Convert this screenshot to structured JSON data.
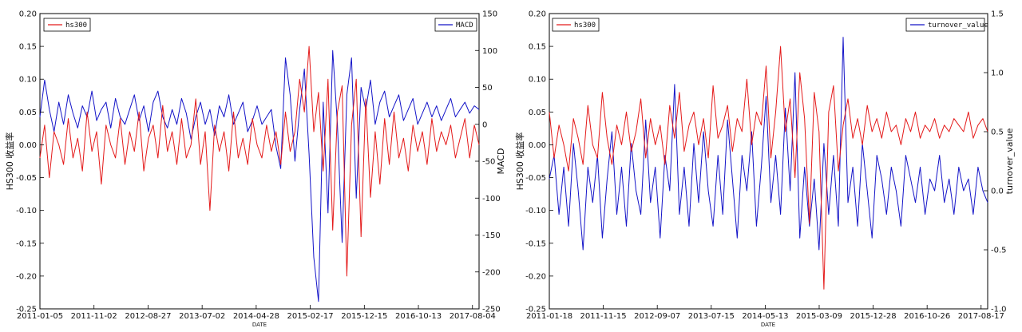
{
  "chart_data": [
    {
      "type": "line",
      "xlabel": "DATE",
      "ylabel_left": "HS300 收益率",
      "ylabel_right": "MACD",
      "x_ticks": [
        "2011-01-05",
        "2011-11-02",
        "2012-08-27",
        "2013-07-02",
        "2014-04-28",
        "2015-02-17",
        "2015-12-15",
        "2016-10-13",
        "2017-08-04"
      ],
      "ylim_left": [
        -0.25,
        0.2
      ],
      "yticks_left": [
        -0.25,
        -0.2,
        -0.15,
        -0.1,
        -0.05,
        0.0,
        0.05,
        0.1,
        0.15,
        0.2
      ],
      "ylim_right": [
        -250,
        150
      ],
      "yticks_right": [
        -250,
        -200,
        -150,
        -100,
        -50,
        0,
        50,
        100,
        150
      ],
      "legend_left": "hs300",
      "legend_right": "MACD",
      "series": [
        {
          "name": "hs300",
          "axis": "left",
          "color": "#e41a1a",
          "values": [
            -0.02,
            0.03,
            -0.05,
            0.02,
            0.0,
            -0.03,
            0.04,
            -0.02,
            0.01,
            -0.04,
            0.05,
            -0.01,
            0.02,
            -0.06,
            0.03,
            0.0,
            -0.02,
            0.04,
            -0.03,
            0.02,
            -0.01,
            0.05,
            -0.04,
            0.01,
            0.03,
            -0.02,
            0.06,
            -0.01,
            0.02,
            -0.03,
            0.04,
            -0.02,
            0.0,
            0.07,
            -0.03,
            0.02,
            -0.1,
            0.03,
            -0.01,
            0.02,
            -0.04,
            0.05,
            -0.02,
            0.01,
            -0.03,
            0.04,
            0.0,
            -0.02,
            0.03,
            -0.01,
            0.02,
            -0.03,
            0.05,
            -0.01,
            0.02,
            0.1,
            0.05,
            0.15,
            0.02,
            0.08,
            -0.04,
            0.1,
            -0.13,
            0.05,
            0.09,
            -0.2,
            0.03,
            0.1,
            -0.14,
            0.07,
            -0.08,
            0.02,
            -0.06,
            0.04,
            -0.03,
            0.05,
            -0.02,
            0.01,
            -0.04,
            0.03,
            -0.01,
            0.02,
            -0.03,
            0.04,
            -0.01,
            0.02,
            0.0,
            0.03,
            -0.02,
            0.01,
            0.04,
            -0.02,
            0.03,
            0.0
          ]
        },
        {
          "name": "MACD",
          "axis": "right",
          "color": "#1414c8",
          "values": [
            10,
            60,
            20,
            -10,
            30,
            0,
            40,
            15,
            -5,
            25,
            10,
            45,
            5,
            20,
            30,
            -5,
            35,
            10,
            0,
            20,
            40,
            5,
            25,
            -10,
            30,
            45,
            10,
            -5,
            20,
            0,
            35,
            15,
            -20,
            10,
            30,
            0,
            20,
            -15,
            25,
            10,
            40,
            0,
            15,
            30,
            -10,
            5,
            25,
            0,
            10,
            20,
            -30,
            -60,
            90,
            40,
            -50,
            20,
            75,
            -40,
            -180,
            -240,
            30,
            -120,
            100,
            0,
            -160,
            40,
            90,
            -100,
            50,
            20,
            60,
            0,
            30,
            45,
            10,
            25,
            40,
            5,
            20,
            35,
            0,
            15,
            30,
            10,
            25,
            5,
            20,
            35,
            10,
            20,
            30,
            15,
            25,
            20
          ]
        }
      ]
    },
    {
      "type": "line",
      "xlabel": "DATE",
      "ylabel_left": "HS300 收益率",
      "ylabel_right": "turnover_value",
      "x_ticks": [
        "2011-01-18",
        "2011-11-15",
        "2012-09-07",
        "2013-07-15",
        "2014-05-13",
        "2015-03-09",
        "2015-12-28",
        "2016-10-26",
        "2017-08-17"
      ],
      "ylim_left": [
        -0.25,
        0.2
      ],
      "yticks_left": [
        -0.25,
        -0.2,
        -0.15,
        -0.1,
        -0.05,
        0.0,
        0.05,
        0.1,
        0.15,
        0.2
      ],
      "ylim_right": [
        -1.0,
        1.5
      ],
      "yticks_right": [
        -1.0,
        -0.5,
        0.0,
        0.5,
        1.0,
        1.5
      ],
      "legend_left": "hs300",
      "legend_right": "turnover_value",
      "series": [
        {
          "name": "hs300",
          "axis": "left",
          "color": "#e41a1a",
          "values": [
            0.05,
            -0.02,
            0.03,
            0.0,
            -0.04,
            0.04,
            0.01,
            -0.03,
            0.06,
            0.0,
            -0.02,
            0.08,
            0.01,
            -0.03,
            0.03,
            0.0,
            0.05,
            -0.01,
            0.02,
            0.07,
            -0.02,
            0.04,
            0.0,
            0.03,
            -0.03,
            0.06,
            0.01,
            0.08,
            -0.01,
            0.03,
            0.05,
            0.0,
            0.04,
            -0.02,
            0.09,
            0.01,
            0.03,
            0.06,
            -0.01,
            0.04,
            0.02,
            0.1,
            0.0,
            0.05,
            0.03,
            0.12,
            -0.02,
            0.05,
            0.15,
            0.02,
            0.07,
            -0.05,
            0.11,
            0.04,
            -0.12,
            0.08,
            0.02,
            -0.22,
            0.05,
            0.09,
            -0.04,
            0.03,
            0.07,
            0.01,
            0.04,
            0.0,
            0.06,
            0.02,
            0.04,
            0.01,
            0.05,
            0.02,
            0.03,
            0.0,
            0.04,
            0.02,
            0.05,
            0.01,
            0.03,
            0.02,
            0.04,
            0.01,
            0.03,
            0.02,
            0.04,
            0.03,
            0.02,
            0.05,
            0.01,
            0.03,
            0.04,
            0.02
          ]
        },
        {
          "name": "turnover_value",
          "axis": "right",
          "color": "#1414c8",
          "values": [
            0.1,
            0.3,
            -0.2,
            0.2,
            -0.3,
            0.4,
            0.0,
            -0.5,
            0.2,
            -0.1,
            0.3,
            -0.4,
            0.1,
            0.5,
            -0.2,
            0.2,
            -0.3,
            0.4,
            0.0,
            -0.2,
            0.6,
            -0.1,
            0.2,
            -0.4,
            0.3,
            0.0,
            0.9,
            -0.2,
            0.2,
            -0.3,
            0.4,
            -0.1,
            0.5,
            0.0,
            -0.3,
            0.3,
            -0.2,
            0.6,
            0.1,
            -0.4,
            0.3,
            0.0,
            0.5,
            -0.3,
            0.2,
            0.8,
            -0.1,
            0.3,
            -0.2,
            0.7,
            0.0,
            1.0,
            -0.4,
            0.2,
            -0.3,
            0.1,
            -0.5,
            0.4,
            -0.2,
            0.3,
            -0.3,
            1.3,
            -0.1,
            0.2,
            -0.3,
            0.4,
            0.0,
            -0.4,
            0.3,
            0.1,
            -0.2,
            0.2,
            0.0,
            -0.3,
            0.3,
            0.1,
            -0.1,
            0.2,
            -0.2,
            0.1,
            0.0,
            0.3,
            -0.1,
            0.1,
            -0.2,
            0.2,
            0.0,
            0.1,
            -0.2,
            0.2,
            0.0,
            -0.1
          ]
        }
      ]
    }
  ]
}
